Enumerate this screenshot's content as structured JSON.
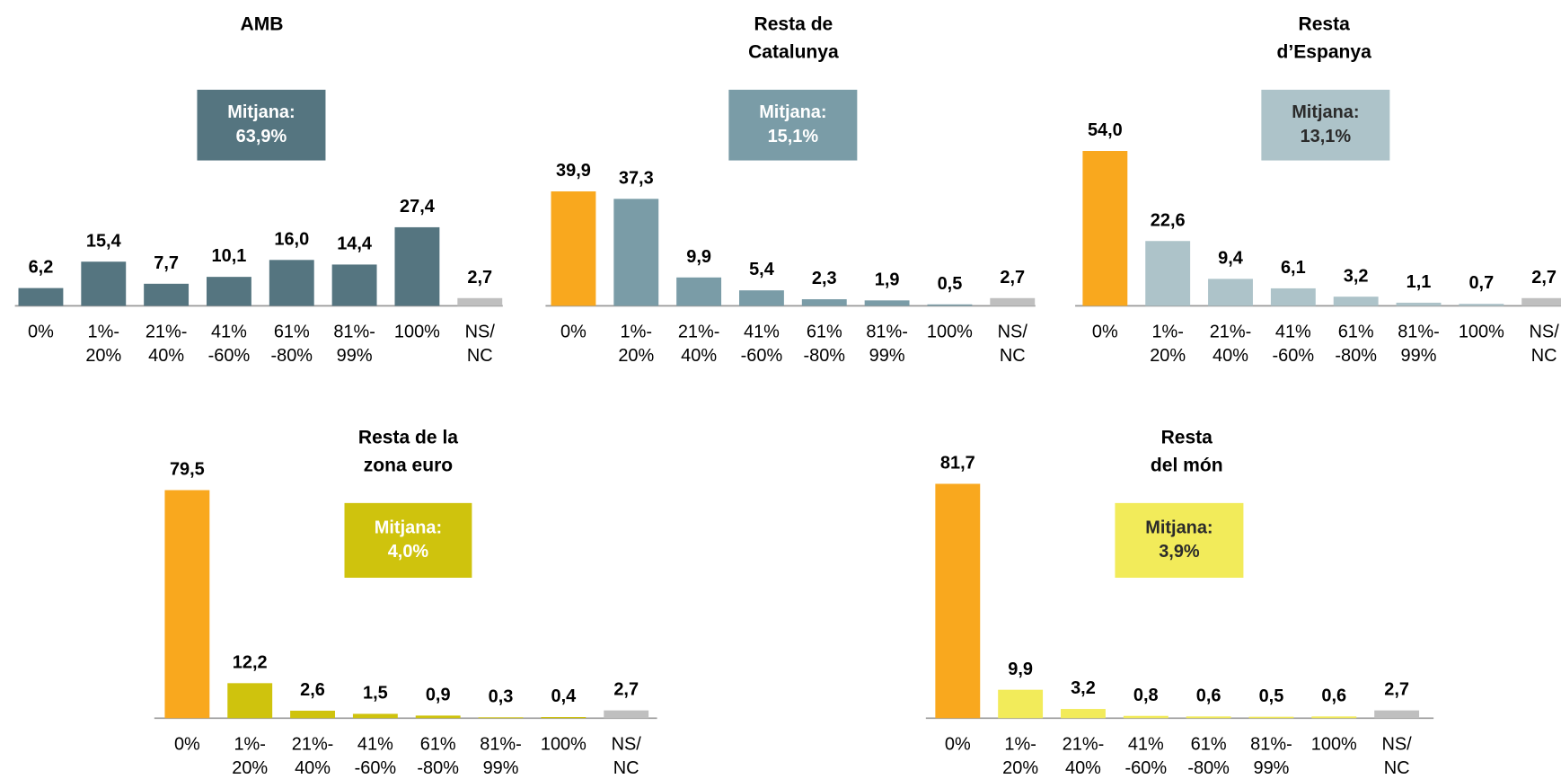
{
  "chart_data": [
    {
      "type": "bar",
      "title": [
        "AMB"
      ],
      "categories": [
        [
          "0%"
        ],
        [
          "1%-",
          "20%"
        ],
        [
          "21%-",
          "40%"
        ],
        [
          "41%",
          "-60%"
        ],
        [
          "61%",
          "-80%"
        ],
        [
          "81%-",
          "99%"
        ],
        [
          "100%"
        ],
        [
          "NS/",
          "NC"
        ]
      ],
      "values": [
        6.2,
        15.4,
        7.7,
        10.1,
        16.0,
        14.4,
        27.4,
        2.7
      ],
      "value_labels": [
        "6,2",
        "15,4",
        "7,7",
        "10,1",
        "16,0",
        "14,4",
        "27,4",
        "2,7"
      ],
      "colors": [
        "#557580",
        "#557580",
        "#557580",
        "#557580",
        "#557580",
        "#557580",
        "#557580",
        "#BFBFBF"
      ],
      "annotation": [
        "Mitjana:",
        "63,9%"
      ],
      "annotation_color": "#557580",
      "annotation_text_color": "#ffffff"
    },
    {
      "type": "bar",
      "title": [
        "Resta de",
        "Catalunya"
      ],
      "categories": [
        [
          "0%"
        ],
        [
          "1%-",
          "20%"
        ],
        [
          "21%-",
          "40%"
        ],
        [
          "41%",
          "-60%"
        ],
        [
          "61%",
          "-80%"
        ],
        [
          "81%-",
          "99%"
        ],
        [
          "100%"
        ],
        [
          "NS/",
          "NC"
        ]
      ],
      "values": [
        39.9,
        37.3,
        9.9,
        5.4,
        2.3,
        1.9,
        0.5,
        2.7
      ],
      "value_labels": [
        "39,9",
        "37,3",
        "9,9",
        "5,4",
        "2,3",
        "1,9",
        "0,5",
        "2,7"
      ],
      "colors": [
        "#F9A81E",
        "#7A9CA7",
        "#7A9CA7",
        "#7A9CA7",
        "#7A9CA7",
        "#7A9CA7",
        "#7A9CA7",
        "#BFBFBF"
      ],
      "annotation": [
        "Mitjana:",
        "15,1%"
      ],
      "annotation_color": "#7A9CA7",
      "annotation_text_color": "#ffffff"
    },
    {
      "type": "bar",
      "title": [
        "Resta",
        "d’Espanya"
      ],
      "categories": [
        [
          "0%"
        ],
        [
          "1%-",
          "20%"
        ],
        [
          "21%-",
          "40%"
        ],
        [
          "41%",
          "-60%"
        ],
        [
          "61%",
          "-80%"
        ],
        [
          "81%-",
          "99%"
        ],
        [
          "100%"
        ],
        [
          "NS/",
          "NC"
        ]
      ],
      "values": [
        54.0,
        22.6,
        9.4,
        6.1,
        3.2,
        1.1,
        0.7,
        2.7
      ],
      "value_labels": [
        "54,0",
        "22,6",
        "9,4",
        "6,1",
        "3,2",
        "1,1",
        "0,7",
        "2,7"
      ],
      "colors": [
        "#F9A81E",
        "#ADC3C9",
        "#ADC3C9",
        "#ADC3C9",
        "#ADC3C9",
        "#ADC3C9",
        "#ADC3C9",
        "#BFBFBF"
      ],
      "annotation": [
        "Mitjana:",
        "13,1%"
      ],
      "annotation_color": "#ADC3C9",
      "annotation_text_color": "#2b2b2b"
    },
    {
      "type": "bar",
      "title": [
        "Resta de la",
        "zona euro"
      ],
      "categories": [
        [
          "0%"
        ],
        [
          "1%-",
          "20%"
        ],
        [
          "21%-",
          "40%"
        ],
        [
          "41%",
          "-60%"
        ],
        [
          "61%",
          "-80%"
        ],
        [
          "81%-",
          "99%"
        ],
        [
          "100%"
        ],
        [
          "NS/",
          "NC"
        ]
      ],
      "values": [
        79.5,
        12.2,
        2.6,
        1.5,
        0.9,
        0.3,
        0.4,
        2.7
      ],
      "value_labels": [
        "79,5",
        "12,2",
        "2,6",
        "1,5",
        "0,9",
        "0,3",
        "0,4",
        "2,7"
      ],
      "colors": [
        "#F9A81E",
        "#CFC30D",
        "#CFC30D",
        "#CFC30D",
        "#CFC30D",
        "#CFC30D",
        "#CFC30D",
        "#BFBFBF"
      ],
      "annotation": [
        "Mitjana:",
        "4,0%"
      ],
      "annotation_color": "#CFC30D",
      "annotation_text_color": "#ffffff"
    },
    {
      "type": "bar",
      "title": [
        "Resta",
        "del món"
      ],
      "categories": [
        [
          "0%"
        ],
        [
          "1%-",
          "20%"
        ],
        [
          "21%-",
          "40%"
        ],
        [
          "41%",
          "-60%"
        ],
        [
          "61%",
          "-80%"
        ],
        [
          "81%-",
          "99%"
        ],
        [
          "100%"
        ],
        [
          "NS/",
          "NC"
        ]
      ],
      "values": [
        81.7,
        9.9,
        3.2,
        0.8,
        0.6,
        0.5,
        0.6,
        2.7
      ],
      "value_labels": [
        "81,7",
        "9,9",
        "3,2",
        "0,8",
        "0,6",
        "0,5",
        "0,6",
        "2,7"
      ],
      "colors": [
        "#F9A81E",
        "#F2EB5A",
        "#F2EB5A",
        "#F2EB5A",
        "#F2EB5A",
        "#F2EB5A",
        "#F2EB5A",
        "#BFBFBF"
      ],
      "annotation": [
        "Mitjana:",
        "3,9%"
      ],
      "annotation_color": "#F2EB5A",
      "annotation_text_color": "#2b2b2b"
    }
  ]
}
